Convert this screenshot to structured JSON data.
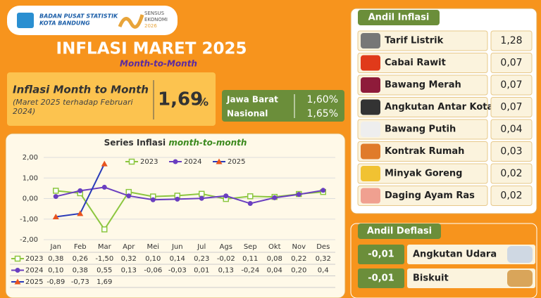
{
  "header": {
    "org": "BADAN PUSAT STATISTIK",
    "org_sub": "KOTA BANDUNG",
    "census": "SENSUS",
    "census_sub": "EKONOMI",
    "census_year": "2026",
    "title": "INFLASI MARET 2025",
    "subtitle": "Month-to-Month"
  },
  "mtm": {
    "label": "Inflasi Month to Month",
    "note": "(Maret 2025 terhadap Februari 2024)",
    "value": "1,69",
    "unit": "%"
  },
  "regional": [
    {
      "name": "Jawa Barat",
      "value": "1,60%"
    },
    {
      "name": "Nasional",
      "value": "1,65%"
    }
  ],
  "andil_inflasi": {
    "title": "Andil Inflasi",
    "items": [
      {
        "name": "Tarif Listrik",
        "value": "1,28"
      },
      {
        "name": "Cabai Rawit",
        "value": "0,07"
      },
      {
        "name": "Bawang Merah",
        "value": "0,07"
      },
      {
        "name": "Angkutan Antar Kota",
        "value": "0,07"
      },
      {
        "name": "Bawang Putih",
        "value": "0,04"
      },
      {
        "name": "Kontrak Rumah",
        "value": "0,03"
      },
      {
        "name": "Minyak Goreng",
        "value": "0,02"
      },
      {
        "name": "Daging Ayam Ras",
        "value": "0,02"
      }
    ]
  },
  "andil_deflasi": {
    "title": "Andil Deflasi",
    "items": [
      {
        "name": "Angkutan Udara",
        "value": "-0,01"
      },
      {
        "name": "Biskuit",
        "value": "-0,01"
      }
    ]
  },
  "chart_data": {
    "type": "line",
    "title": "Series Inflasi",
    "title_em": "month-to-month",
    "categories": [
      "Jan",
      "Feb",
      "Mar",
      "Apr",
      "Mei",
      "Jun",
      "Jul",
      "Ags",
      "Sep",
      "Okt",
      "Nov",
      "Des"
    ],
    "series": [
      {
        "name": "2023",
        "color": "#8cc63f",
        "marker": "square",
        "values": [
          0.38,
          0.26,
          -1.5,
          0.32,
          0.1,
          0.14,
          0.23,
          -0.02,
          0.11,
          0.08,
          0.22,
          0.32
        ],
        "value_labels": [
          "0,38",
          "0,26",
          "-1,50",
          "0,32",
          "0,10",
          "0,14",
          "0,23",
          "-0,02",
          "0,11",
          "0,08",
          "0,22",
          "0,32"
        ]
      },
      {
        "name": "2024",
        "color": "#6a3fc0",
        "marker": "circle",
        "values": [
          0.1,
          0.38,
          0.55,
          0.13,
          -0.06,
          -0.03,
          0.01,
          0.13,
          -0.24,
          0.04,
          0.2,
          0.4
        ],
        "value_labels": [
          "0,10",
          "0,38",
          "0,55",
          "0,13",
          "-0,06",
          "-0,03",
          "0,01",
          "0,13",
          "-0,24",
          "0,04",
          "0,20",
          "0,4"
        ]
      },
      {
        "name": "2025",
        "color": "#2a3bb8",
        "marker": "triangle",
        "marker_color": "#e8541e",
        "values": [
          -0.89,
          -0.73,
          1.69,
          null,
          null,
          null,
          null,
          null,
          null,
          null,
          null,
          null
        ],
        "value_labels": [
          "-0,89",
          "-0,73",
          "1,69",
          null,
          null,
          null,
          null,
          null,
          null,
          null,
          null,
          null
        ]
      }
    ],
    "ylim": [
      -2,
      2
    ],
    "yticks": [
      {
        "value": -2,
        "label": "-2,00"
      },
      {
        "value": -1,
        "label": "-1,00"
      },
      {
        "value": 0,
        "label": "0,00"
      },
      {
        "value": 1,
        "label": "1,00"
      },
      {
        "value": 2,
        "label": "2,00"
      }
    ],
    "grid": true,
    "legend": "top"
  }
}
